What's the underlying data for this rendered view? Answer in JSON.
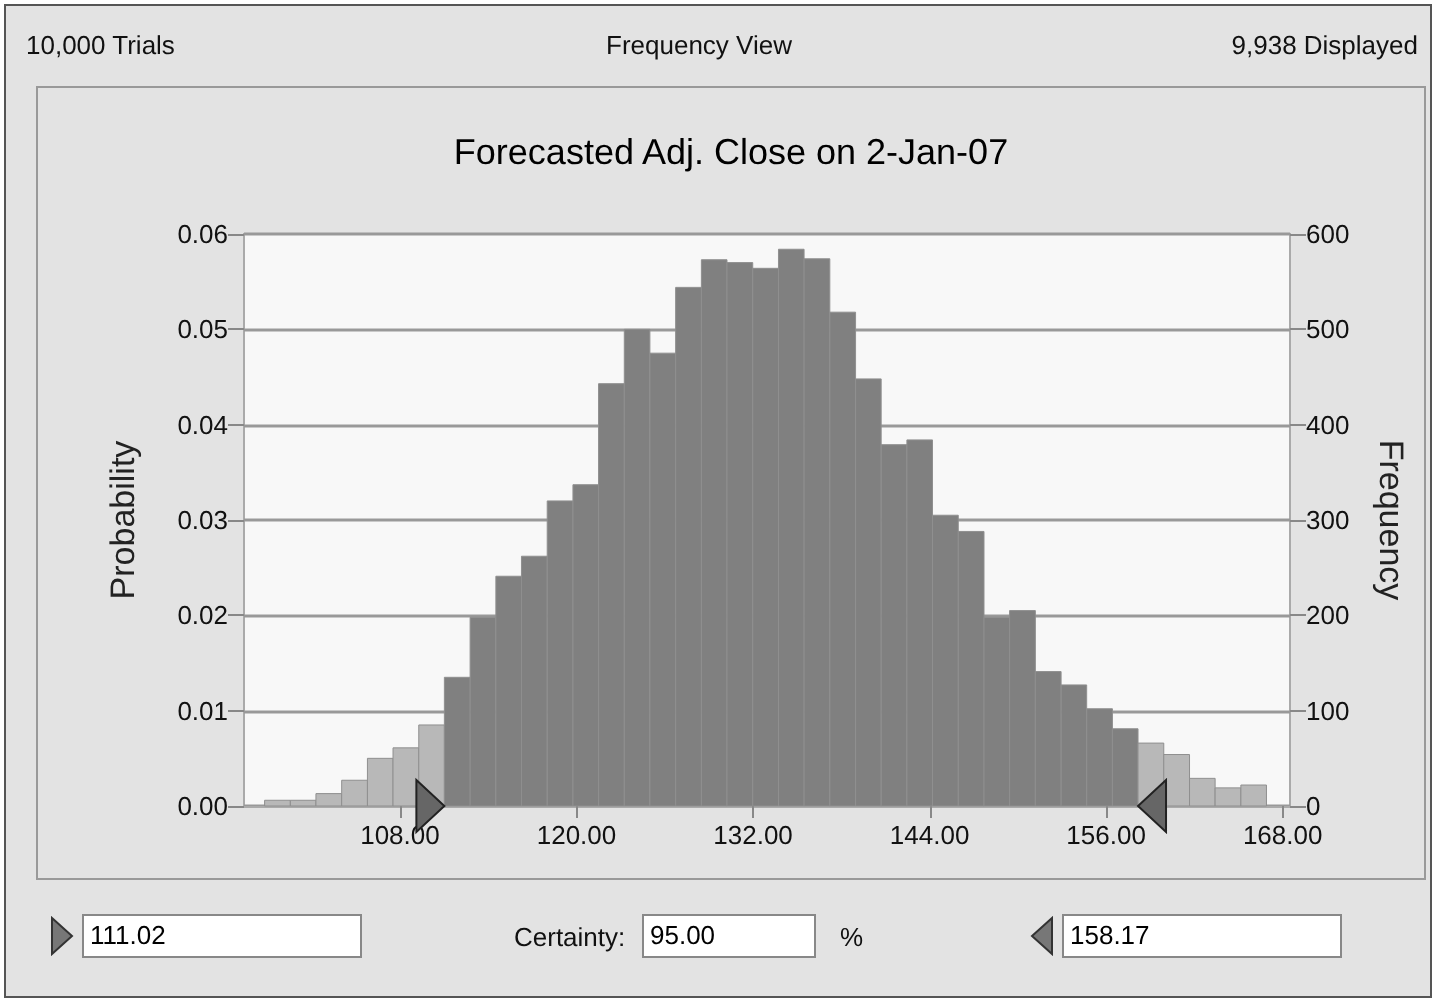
{
  "chart_data": {
    "type": "histogram",
    "title": "Forecasted Adj. Close on 2-Jan-07",
    "ylabel": "Probability",
    "y2label": "Frequency",
    "bins": [
      98.8,
      100.55,
      102.29,
      104.04,
      105.79,
      107.53,
      109.28,
      111.02,
      112.77,
      114.52,
      116.26,
      118.01,
      119.76,
      121.5,
      123.25,
      124.99,
      126.74,
      128.49,
      130.23,
      131.98,
      133.73,
      135.47,
      137.22,
      138.97,
      140.71,
      142.46,
      144.2,
      145.95,
      147.7,
      149.44,
      151.19,
      152.94,
      154.68,
      156.43,
      158.17,
      159.92,
      161.67,
      163.41,
      165.16,
      166.9
    ],
    "values": [
      0.0006,
      0.0006,
      0.0013,
      0.0027,
      0.005,
      0.0061,
      0.0085,
      0.0135,
      0.0198,
      0.0241,
      0.0262,
      0.032,
      0.0337,
      0.0443,
      0.05,
      0.0475,
      0.0544,
      0.0573,
      0.057,
      0.0564,
      0.0584,
      0.0574,
      0.0518,
      0.0448,
      0.0379,
      0.0384,
      0.0305,
      0.0288,
      0.0198,
      0.0205,
      0.0141,
      0.0127,
      0.0102,
      0.0081,
      0.0066,
      0.0054,
      0.0029,
      0.0019,
      0.0022
    ],
    "colors": [
      "#b8b8b8",
      "#b8b8b8",
      "#b8b8b8",
      "#b8b8b8",
      "#b8b8b8",
      "#b8b8b8",
      "#b8b8b8",
      "#808080",
      "#808080",
      "#808080",
      "#808080",
      "#808080",
      "#808080",
      "#808080",
      "#808080",
      "#808080",
      "#808080",
      "#808080",
      "#808080",
      "#808080",
      "#808080",
      "#808080",
      "#808080",
      "#808080",
      "#808080",
      "#808080",
      "#808080",
      "#808080",
      "#808080",
      "#808080",
      "#808080",
      "#808080",
      "#808080",
      "#808080",
      "#b8b8b8",
      "#b8b8b8",
      "#b8b8b8",
      "#b8b8b8",
      "#b8b8b8"
    ],
    "xlim": [
      97.4,
      168.5
    ],
    "xticks": [
      {
        "value": 108,
        "label": "108.00"
      },
      {
        "value": 120,
        "label": "120.00"
      },
      {
        "value": 132,
        "label": "132.00"
      },
      {
        "value": 144,
        "label": "144.00"
      },
      {
        "value": 156,
        "label": "156.00"
      },
      {
        "value": 168,
        "label": "168.00"
      }
    ],
    "ylim": [
      0,
      0.06
    ],
    "yticks": [
      {
        "value": 0,
        "label": "0.00"
      },
      {
        "value": 0.01,
        "label": "0.01"
      },
      {
        "value": 0.02,
        "label": "0.02"
      },
      {
        "value": 0.03,
        "label": "0.03"
      },
      {
        "value": 0.04,
        "label": "0.04"
      },
      {
        "value": 0.05,
        "label": "0.05"
      },
      {
        "value": 0.06,
        "label": "0.06"
      }
    ],
    "y2lim": [
      0,
      600
    ],
    "y2ticks": [
      0,
      100,
      200,
      300,
      400,
      500,
      600
    ],
    "grid": "y",
    "annotations": [
      "10,000 Trials",
      "Frequency View",
      "9,938 Displayed",
      "111.02",
      "Certainty:",
      "95.00",
      "%",
      "158.17"
    ]
  }
}
